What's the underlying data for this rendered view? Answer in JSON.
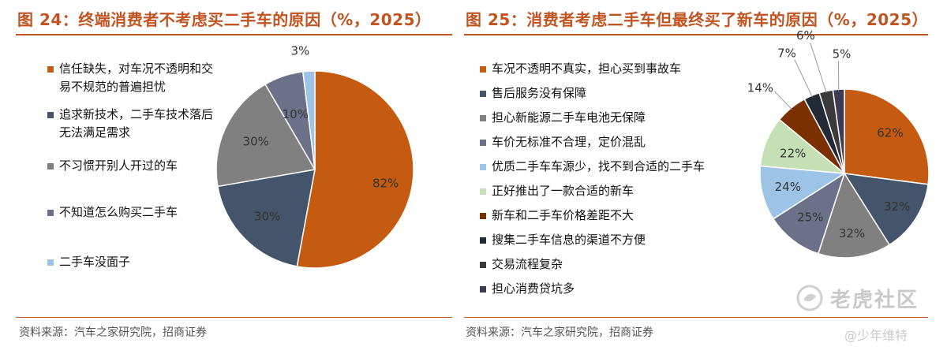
{
  "left": {
    "title": "图 24：终端消费者不考虑买二手车的原因（%，2025）",
    "source": "资料来源：汽车之家研究院，招商证券"
  },
  "right": {
    "title": "图 25：消费者考虑二手车但最终买了新车的原因（%，2025）",
    "source": "资料来源：汽车之家研究院，招商证券"
  },
  "watermark": {
    "text": "老虎社区",
    "sub": "@少年维特"
  },
  "chart_data": [
    {
      "type": "pie",
      "title": "图 24：终端消费者不考虑买二手车的原因（%，2025）",
      "legend": "left",
      "slices": [
        {
          "label": "信任缺失，对车况不透明和交易不规范的普遍担忧",
          "value": 82,
          "value_label": "82%",
          "color": "#c55a11",
          "text_color": "#333333"
        },
        {
          "label": "追求新技术，二手车技术落后无法满足需求",
          "value": 30,
          "value_label": "30%",
          "color": "#44546a",
          "text_color": "#333333"
        },
        {
          "label": "不习惯开别人开过的车",
          "value": 30,
          "value_label": "30%",
          "color": "#808080",
          "text_color": "#333333"
        },
        {
          "label": "不知道怎么购买二手车",
          "value": 10,
          "value_label": "10%",
          "color": "#6c7189",
          "text_color": "#333333"
        },
        {
          "label": "二手车没面子",
          "value": 3,
          "value_label": "3%",
          "color": "#9dc3e6",
          "text_color": "#333333"
        }
      ]
    },
    {
      "type": "pie",
      "title": "图 25：消费者考虑二手车但最终买了新车的原因（%，2025）",
      "legend": "left",
      "slices": [
        {
          "label": "车况不透明不真实，担心买到事故车",
          "value": 62,
          "value_label": "62%",
          "color": "#c55a11",
          "text_color": "#333333"
        },
        {
          "label": "售后服务没有保障",
          "value": 32,
          "value_label": "32%",
          "color": "#44546a",
          "text_color": "#333333"
        },
        {
          "label": "担心新能源二手车电池无保障",
          "value": 32,
          "value_label": "32%",
          "color": "#808080",
          "text_color": "#333333"
        },
        {
          "label": "车价无标准不合理，定价混乱",
          "value": 25,
          "value_label": "25%",
          "color": "#6c7189",
          "text_color": "#333333"
        },
        {
          "label": "优质二手车车源少，找不到合适的二手车",
          "value": 24,
          "value_label": "24%",
          "color": "#9dc3e6",
          "text_color": "#333333"
        },
        {
          "label": "正好推出了一款合适的新车",
          "value": 22,
          "value_label": "22%",
          "color": "#c5e0b4",
          "text_color": "#333333"
        },
        {
          "label": "新车和二手车价格差距不大",
          "value": 14,
          "value_label": "14%",
          "color": "#7b3000",
          "text_color": "#333333"
        },
        {
          "label": "搜集二手车信息的渠道不方便",
          "value": 7,
          "value_label": "7%",
          "color": "#222a35",
          "text_color": "#333333"
        },
        {
          "label": "交易流程复杂",
          "value": 6,
          "value_label": "6%",
          "color": "#3a3a3a",
          "text_color": "#333333"
        },
        {
          "label": "担心消费贷坑多",
          "value": 5,
          "value_label": "5%",
          "color": "#3b3b55",
          "text_color": "#333333"
        }
      ]
    }
  ]
}
